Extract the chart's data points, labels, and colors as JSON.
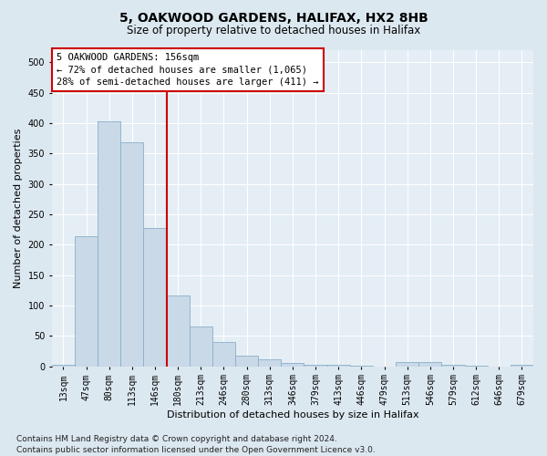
{
  "title1": "5, OAKWOOD GARDENS, HALIFAX, HX2 8HB",
  "title2": "Size of property relative to detached houses in Halifax",
  "xlabel": "Distribution of detached houses by size in Halifax",
  "ylabel": "Number of detached properties",
  "footnote": "Contains HM Land Registry data © Crown copyright and database right 2024.\nContains public sector information licensed under the Open Government Licence v3.0.",
  "bar_labels": [
    "13sqm",
    "47sqm",
    "80sqm",
    "113sqm",
    "146sqm",
    "180sqm",
    "213sqm",
    "246sqm",
    "280sqm",
    "313sqm",
    "346sqm",
    "379sqm",
    "413sqm",
    "446sqm",
    "479sqm",
    "513sqm",
    "546sqm",
    "579sqm",
    "612sqm",
    "646sqm",
    "679sqm"
  ],
  "bar_values": [
    2,
    214,
    403,
    369,
    228,
    117,
    65,
    40,
    18,
    12,
    6,
    3,
    2,
    1,
    0,
    7,
    7,
    2,
    1,
    0,
    2
  ],
  "bar_color": "#c9d9e8",
  "bar_edge_color": "#8aafc8",
  "vline_x": 4.5,
  "vline_color": "#cc0000",
  "annotation_text": "5 OAKWOOD GARDENS: 156sqm\n← 72% of detached houses are smaller (1,065)\n28% of semi-detached houses are larger (411) →",
  "annotation_box_color": "#ffffff",
  "annotation_box_edge": "#cc0000",
  "ylim": [
    0,
    520
  ],
  "yticks": [
    0,
    50,
    100,
    150,
    200,
    250,
    300,
    350,
    400,
    450,
    500
  ],
  "bg_color": "#dce8f0",
  "plot_bg_color": "#e5eef5",
  "grid_color": "#ffffff",
  "title1_fontsize": 10,
  "title2_fontsize": 8.5,
  "annotation_fontsize": 7.5,
  "xlabel_fontsize": 8,
  "ylabel_fontsize": 8,
  "tick_fontsize": 7,
  "footnote_fontsize": 6.5
}
